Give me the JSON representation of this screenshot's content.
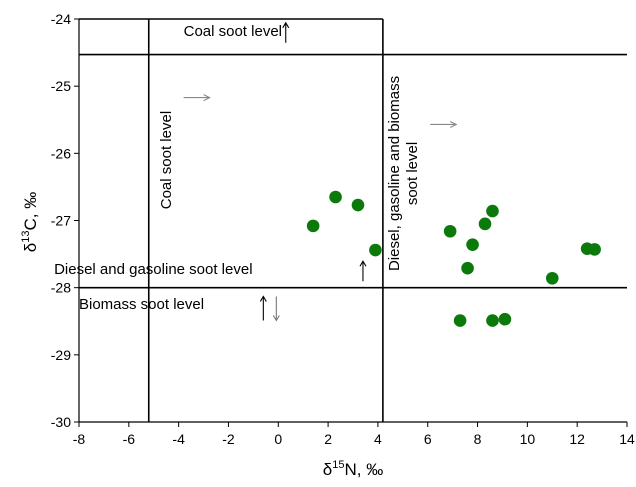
{
  "chart_data": {
    "type": "scatter",
    "title": "",
    "xlabel": {
      "prefix": "δ",
      "sup": "15",
      "main": "N, ‰"
    },
    "ylabel": {
      "prefix": "δ",
      "sup": "13",
      "main": "C, ‰"
    },
    "xlim": [
      -8,
      14
    ],
    "ylim": [
      -30,
      -24
    ],
    "xticks": [
      -8,
      -6,
      -4,
      -2,
      0,
      2,
      4,
      6,
      8,
      10,
      12,
      14
    ],
    "yticks": [
      -30,
      -29,
      -28,
      -27,
      -26,
      -25,
      -24
    ],
    "xtick_labels": [
      "-8",
      "-6",
      "-4",
      "-2",
      "0",
      "2",
      "4",
      "6",
      "8",
      "10",
      "12",
      "14"
    ],
    "ytick_labels": [
      "-30",
      "-29",
      "-28",
      "-27",
      "-26",
      "-25",
      "-24"
    ],
    "grid": false,
    "legend": "none",
    "marker_color": "#0b7a0b",
    "series": [
      {
        "x": [
          1.4,
          2.3,
          3.2,
          3.9,
          6.9,
          7.3,
          7.6,
          7.8,
          8.3,
          8.6,
          8.6,
          9.1,
          11.0,
          12.4,
          12.7
        ],
        "y": [
          -27.08,
          -26.65,
          -26.77,
          -27.44,
          -27.16,
          -28.49,
          -27.71,
          -27.36,
          -27.05,
          -26.86,
          -28.49,
          -28.47,
          -27.86,
          -27.42,
          -27.43
        ]
      }
    ],
    "reference_lines": [
      {
        "orientation": "horizontal",
        "value": -24.53
      },
      {
        "orientation": "horizontal",
        "value": -28.0
      },
      {
        "orientation": "vertical",
        "value": -5.2
      },
      {
        "orientation": "vertical",
        "value": 4.2
      }
    ],
    "annotations": [
      {
        "id": "coal-h",
        "text": "Coal soot level",
        "anchor": [
          -3.8,
          -24.25
        ],
        "rotate": 0,
        "arrow": "up-black",
        "arrow_at": [
          0.3,
          -24.25
        ]
      },
      {
        "id": "coal-v",
        "text": "Coal soot level",
        "anchor": [
          -4.3,
          -26.1
        ],
        "rotate": -90,
        "arrow": "right-gray",
        "arrow_at": [
          -3.8,
          -25.17
        ]
      },
      {
        "id": "diesel-gas-bio",
        "lines": [
          "Diesel, gasoline and biomass",
          "soot level"
        ],
        "anchor": [
          5.2,
          -26.3
        ],
        "rotate": -90,
        "arrow": "right-gray",
        "arrow_at": [
          6.1,
          -25.57
        ]
      },
      {
        "id": "diesel-gas",
        "text": "Diesel and gasoline soot level",
        "anchor": [
          -9.0,
          -27.8
        ],
        "rotate": 0,
        "arrow": "up-black",
        "arrow_at": [
          3.4,
          -27.8
        ]
      },
      {
        "id": "biomass",
        "text": "Biomass soot level",
        "anchor": [
          -8.0,
          -28.32
        ],
        "rotate": 0,
        "arrow": "updown",
        "arrow_at": [
          -0.6,
          -28.28
        ]
      }
    ]
  }
}
